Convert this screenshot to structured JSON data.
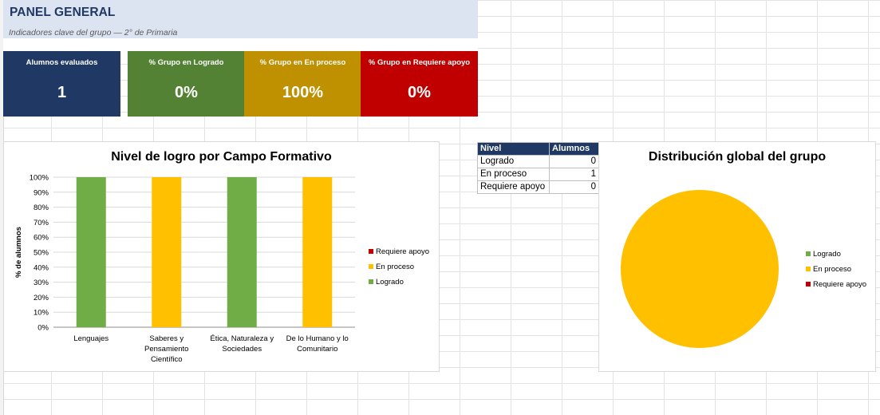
{
  "header": {
    "title": "PANEL GENERAL",
    "subtitle": "Indicadores clave del grupo — 2° de Primaria"
  },
  "kpis": [
    {
      "label": "Alumnos evaluados",
      "value": "1",
      "color": "#1f3864"
    },
    {
      "label": "% Grupo en Logrado",
      "value": "0%",
      "color": "#548235"
    },
    {
      "label": "% Grupo en En proceso",
      "value": "100%",
      "color": "#bf9000"
    },
    {
      "label": "% Grupo en Requiere apoyo",
      "value": "0%",
      "color": "#c00000"
    }
  ],
  "colors": {
    "logrado": "#70ad47",
    "en_proceso": "#ffc000",
    "requiere_apoyo": "#c00000"
  },
  "summary_table": {
    "headers": [
      "Nivel",
      "Alumnos"
    ],
    "rows": [
      {
        "nivel": "Logrado",
        "alumnos": "0"
      },
      {
        "nivel": "En proceso",
        "alumnos": "1"
      },
      {
        "nivel": "Requiere apoyo",
        "alumnos": "0"
      }
    ]
  },
  "chart_data": [
    {
      "type": "bar",
      "stacked": true,
      "title": "Nivel de logro por Campo Formativo",
      "xlabel": "",
      "ylabel": "% de alumnos",
      "ylim": [
        0,
        100
      ],
      "yticks": [
        "0%",
        "10%",
        "20%",
        "30%",
        "40%",
        "50%",
        "60%",
        "70%",
        "80%",
        "90%",
        "100%"
      ],
      "categories": [
        [
          "Lenguajes"
        ],
        [
          "Saberes y",
          "Pensamiento",
          "Científico"
        ],
        [
          "Ética, Naturaleza y",
          "Sociedades"
        ],
        [
          "De lo Humano y lo",
          "Comunitario"
        ]
      ],
      "series": [
        {
          "name": "Logrado",
          "values": [
            100,
            0,
            100,
            0
          ],
          "color": "#70ad47"
        },
        {
          "name": "En proceso",
          "values": [
            0,
            100,
            0,
            100
          ],
          "color": "#ffc000"
        },
        {
          "name": "Requiere apoyo",
          "values": [
            0,
            0,
            0,
            0
          ],
          "color": "#c00000"
        }
      ],
      "legend_order": [
        "Requiere apoyo",
        "En proceso",
        "Logrado"
      ],
      "legend": "right",
      "grid": true
    },
    {
      "type": "pie",
      "title": "Distribución global del grupo",
      "labels": [
        "Logrado",
        "En proceso",
        "Requiere apoyo"
      ],
      "values": [
        0,
        1,
        0
      ],
      "colors": [
        "#70ad47",
        "#ffc000",
        "#c00000"
      ],
      "legend": "right"
    }
  ]
}
